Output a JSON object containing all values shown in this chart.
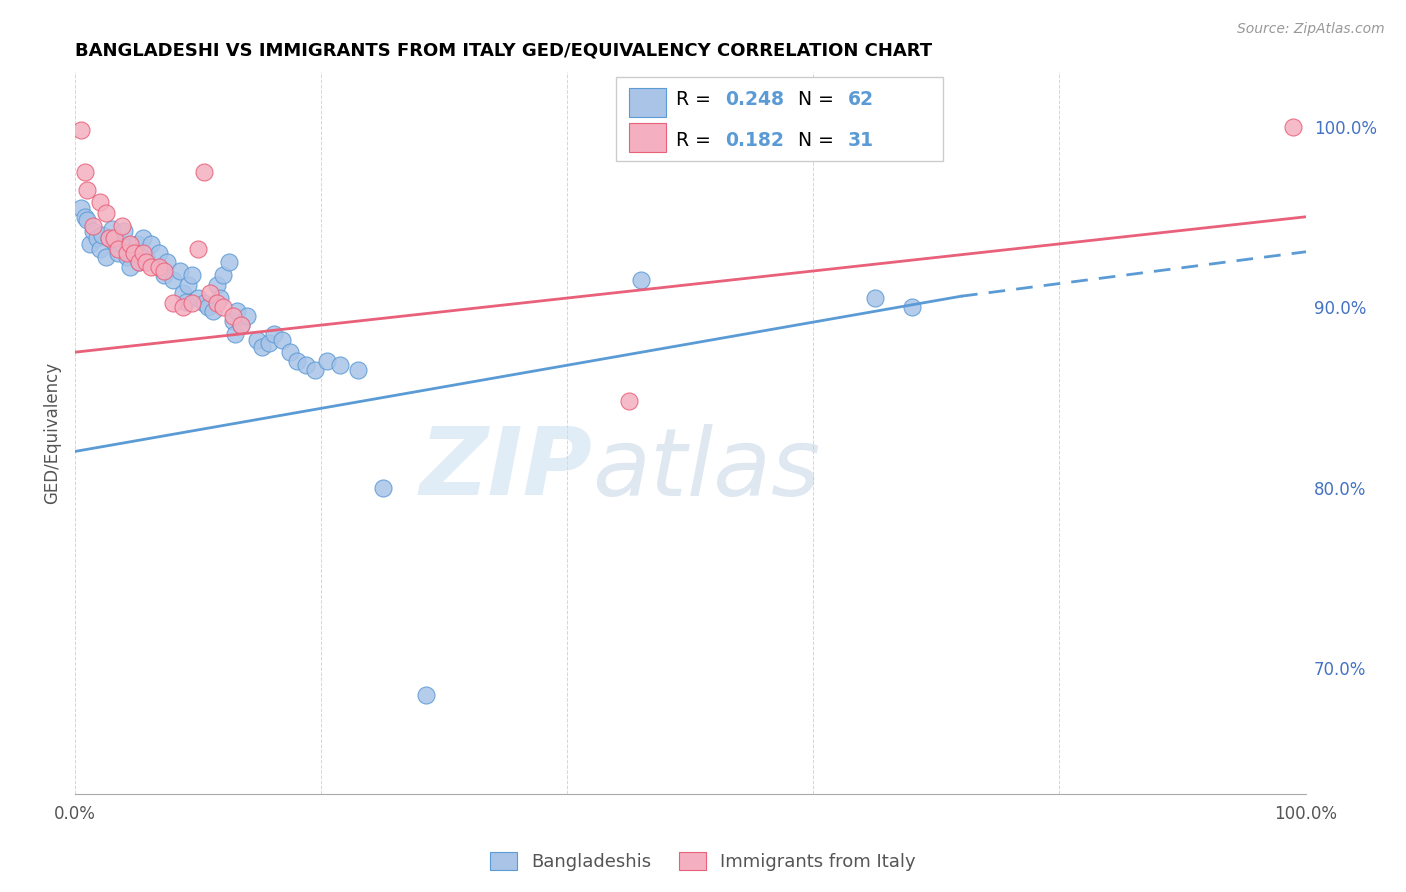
{
  "title": "BANGLADESHI VS IMMIGRANTS FROM ITALY GED/EQUIVALENCY CORRELATION CHART",
  "source": "Source: ZipAtlas.com",
  "ylabel": "GED/Equivalency",
  "legend_blue_R": "0.248",
  "legend_blue_N": "62",
  "legend_pink_R": "0.182",
  "legend_pink_N": "31",
  "legend_label_blue": "Bangladeshis",
  "legend_label_pink": "Immigrants from Italy",
  "watermark_zip": "ZIP",
  "watermark_atlas": "atlas",
  "blue_color": "#aac4e8",
  "pink_color": "#f4afc0",
  "blue_line_color": "#5b9bd5",
  "pink_line_color": "#e8607a",
  "blue_dark": "#3a78b5",
  "pink_dark": "#c84060",
  "right_axis_color": "#4472c4",
  "blue_scatter": [
    [
      0.5,
      95.5
    ],
    [
      0.8,
      95.0
    ],
    [
      1.0,
      94.8
    ],
    [
      1.2,
      93.5
    ],
    [
      1.5,
      94.2
    ],
    [
      1.8,
      93.8
    ],
    [
      2.0,
      93.2
    ],
    [
      2.2,
      94.0
    ],
    [
      2.5,
      92.8
    ],
    [
      2.8,
      93.8
    ],
    [
      3.0,
      94.3
    ],
    [
      3.2,
      93.6
    ],
    [
      3.5,
      93.0
    ],
    [
      3.8,
      93.5
    ],
    [
      4.0,
      94.2
    ],
    [
      4.2,
      92.8
    ],
    [
      4.5,
      92.2
    ],
    [
      4.8,
      93.0
    ],
    [
      5.0,
      93.5
    ],
    [
      5.2,
      92.5
    ],
    [
      5.5,
      93.8
    ],
    [
      5.8,
      92.8
    ],
    [
      6.2,
      93.5
    ],
    [
      6.8,
      93.0
    ],
    [
      7.2,
      91.8
    ],
    [
      7.5,
      92.5
    ],
    [
      8.0,
      91.5
    ],
    [
      8.5,
      92.0
    ],
    [
      8.8,
      90.8
    ],
    [
      9.0,
      90.3
    ],
    [
      9.2,
      91.2
    ],
    [
      9.5,
      91.8
    ],
    [
      10.0,
      90.5
    ],
    [
      10.5,
      90.2
    ],
    [
      10.8,
      90.0
    ],
    [
      11.2,
      89.8
    ],
    [
      11.5,
      91.2
    ],
    [
      11.8,
      90.5
    ],
    [
      12.0,
      91.8
    ],
    [
      12.5,
      92.5
    ],
    [
      12.8,
      89.2
    ],
    [
      13.0,
      88.5
    ],
    [
      13.2,
      89.8
    ],
    [
      13.5,
      89.0
    ],
    [
      14.0,
      89.5
    ],
    [
      14.8,
      88.2
    ],
    [
      15.2,
      87.8
    ],
    [
      15.8,
      88.0
    ],
    [
      16.2,
      88.5
    ],
    [
      16.8,
      88.2
    ],
    [
      17.5,
      87.5
    ],
    [
      18.0,
      87.0
    ],
    [
      18.8,
      86.8
    ],
    [
      19.5,
      86.5
    ],
    [
      20.5,
      87.0
    ],
    [
      21.5,
      86.8
    ],
    [
      23.0,
      86.5
    ],
    [
      25.0,
      80.0
    ],
    [
      28.5,
      68.5
    ],
    [
      46.0,
      91.5
    ],
    [
      65.0,
      90.5
    ],
    [
      68.0,
      90.0
    ]
  ],
  "pink_scatter": [
    [
      0.5,
      99.8
    ],
    [
      0.8,
      97.5
    ],
    [
      1.0,
      96.5
    ],
    [
      1.5,
      94.5
    ],
    [
      2.0,
      95.8
    ],
    [
      2.5,
      95.2
    ],
    [
      2.8,
      93.8
    ],
    [
      3.2,
      93.8
    ],
    [
      3.5,
      93.2
    ],
    [
      3.8,
      94.5
    ],
    [
      4.2,
      93.0
    ],
    [
      4.5,
      93.5
    ],
    [
      4.8,
      93.0
    ],
    [
      5.2,
      92.5
    ],
    [
      5.5,
      93.0
    ],
    [
      5.8,
      92.5
    ],
    [
      6.2,
      92.2
    ],
    [
      6.8,
      92.2
    ],
    [
      7.2,
      92.0
    ],
    [
      8.0,
      90.2
    ],
    [
      8.8,
      90.0
    ],
    [
      9.5,
      90.2
    ],
    [
      10.0,
      93.2
    ],
    [
      10.5,
      97.5
    ],
    [
      11.0,
      90.8
    ],
    [
      11.5,
      90.2
    ],
    [
      12.0,
      90.0
    ],
    [
      12.8,
      89.5
    ],
    [
      13.5,
      89.0
    ],
    [
      45.0,
      84.8
    ],
    [
      99.0,
      100.0
    ]
  ],
  "blue_trendline": [
    [
      0.0,
      82.0
    ],
    [
      100.0,
      94.0
    ]
  ],
  "pink_trendline": [
    [
      0.0,
      87.5
    ],
    [
      100.0,
      95.0
    ]
  ],
  "blue_trendline_solid": [
    [
      0.0,
      82.0
    ],
    [
      72.0,
      90.6
    ]
  ],
  "blue_trendline_dash": [
    [
      72.0,
      90.6
    ],
    [
      105.0,
      93.5
    ]
  ],
  "xlim": [
    0.0,
    100.0
  ],
  "ylim": [
    63.0,
    103.0
  ],
  "yticks_right": [
    70.0,
    80.0,
    90.0,
    100.0
  ],
  "ytick_labels_right": [
    "70.0%",
    "80.0%",
    "90.0%",
    "100.0%"
  ]
}
